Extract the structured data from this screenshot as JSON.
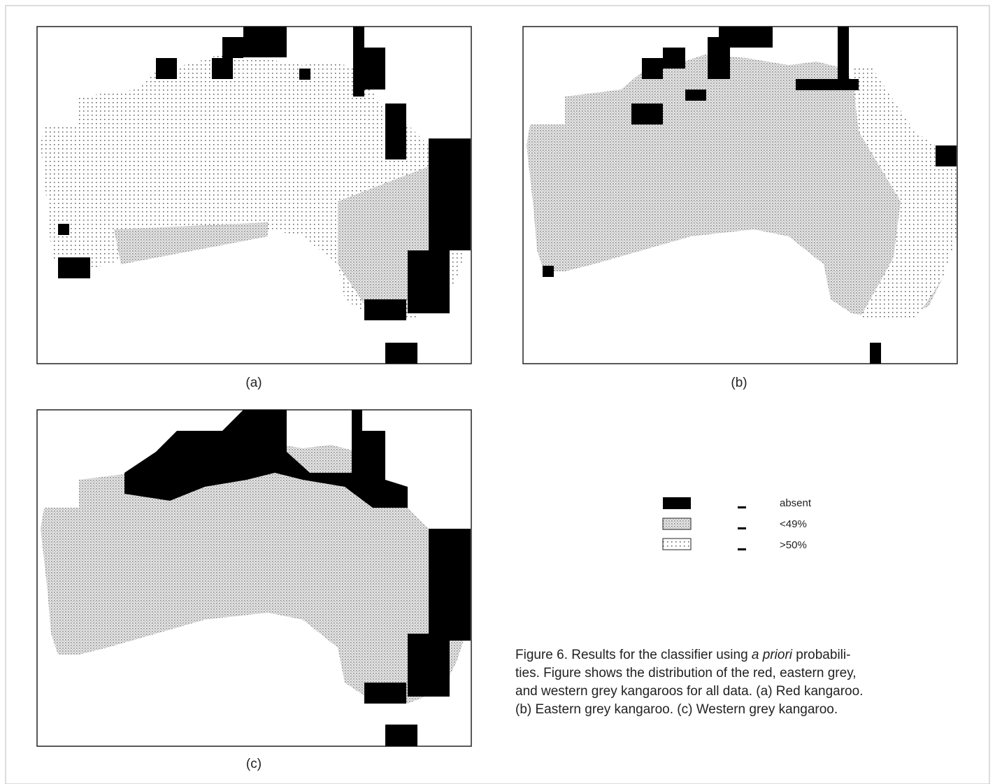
{
  "panels": [
    {
      "label": "(a)"
    },
    {
      "label": "(b)"
    },
    {
      "label": "(c)"
    }
  ],
  "legend": [
    {
      "label": "absent"
    },
    {
      "label": "<49%"
    },
    {
      "label": ">50%"
    }
  ],
  "caption": {
    "first_line": {
      "before": "Figure 6. Results for the classifier using ",
      "italic": "a priori",
      "after": " probabili-"
    },
    "lines": [
      "ties. Figure shows the distribution of the red, eastern grey,",
      "and western grey kangaroos for all data. (a) Red kangaroo.",
      "(b) Eastern grey kangaroo. (c) Western grey kangaroo."
    ]
  }
}
